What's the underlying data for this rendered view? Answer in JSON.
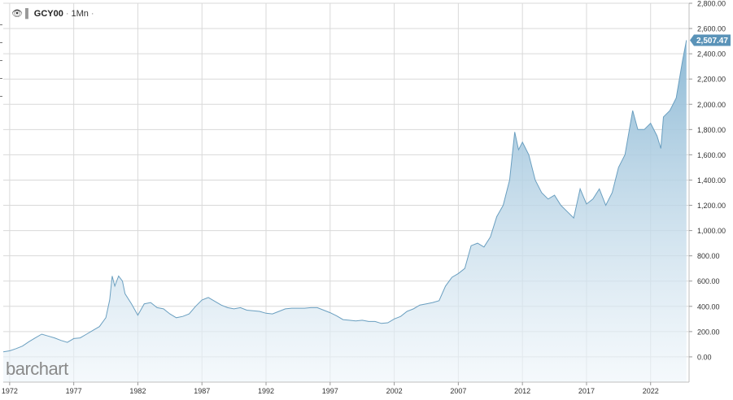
{
  "symbol": "GCY00",
  "period": "1Mn",
  "logo_text": "barchart",
  "last_value_label": "2,507.47",
  "colors": {
    "line": "#6a9fc0",
    "fill_top": "#8db9d5",
    "fill_bottom": "#eef5fa",
    "grid": "#d9d9d9",
    "badge": "#5a93b8"
  },
  "chart_data": {
    "type": "area",
    "title": "",
    "xlabel": "",
    "ylabel": "",
    "ylim": [
      -200,
      2800
    ],
    "xlim": [
      1971.5,
      2025.0
    ],
    "y_ticks": [
      0,
      200,
      400,
      600,
      800,
      1000,
      1200,
      1400,
      1600,
      1800,
      2000,
      2200,
      2400,
      2600,
      2800
    ],
    "y_tick_labels": [
      "0.00",
      "200.00",
      "400.00",
      "600.00",
      "800.00",
      "1,000.00",
      "1,200.00",
      "1,400.00",
      "1,600.00",
      "1,800.00",
      "2,000.00",
      "2,200.00",
      "2,400.00",
      "2,600.00",
      "2,800.00"
    ],
    "x_ticks": [
      1972,
      1977,
      1982,
      1987,
      1992,
      1997,
      2002,
      2007,
      2012,
      2017,
      2022
    ],
    "x_tick_labels": [
      "1972",
      "1977",
      "1982",
      "1987",
      "1992",
      "1997",
      "2002",
      "2007",
      "2012",
      "2017",
      "2022"
    ],
    "grid": true,
    "legend": "top-left",
    "series": [
      {
        "x": [
          1971.5,
          1972.0,
          1972.5,
          1973.0,
          1973.5,
          1974.0,
          1974.5,
          1975.0,
          1975.5,
          1976.0,
          1976.5,
          1977.0,
          1977.5,
          1978.0,
          1978.5,
          1979.0,
          1979.5,
          1979.8,
          1980.0,
          1980.2,
          1980.5,
          1980.8,
          1981.0,
          1981.5,
          1982.0,
          1982.5,
          1983.0,
          1983.5,
          1984.0,
          1984.5,
          1985.0,
          1985.5,
          1986.0,
          1986.5,
          1987.0,
          1987.5,
          1988.0,
          1988.5,
          1989.0,
          1989.5,
          1990.0,
          1990.5,
          1991.0,
          1991.5,
          1992.0,
          1992.5,
          1993.0,
          1993.5,
          1994.0,
          1994.5,
          1995.0,
          1995.5,
          1996.0,
          1996.5,
          1997.0,
          1997.5,
          1998.0,
          1998.5,
          1999.0,
          1999.5,
          2000.0,
          2000.5,
          2001.0,
          2001.5,
          2002.0,
          2002.5,
          2003.0,
          2003.5,
          2004.0,
          2004.5,
          2005.0,
          2005.5,
          2006.0,
          2006.5,
          2007.0,
          2007.5,
          2008.0,
          2008.5,
          2009.0,
          2009.5,
          2010.0,
          2010.5,
          2011.0,
          2011.4,
          2011.7,
          2012.0,
          2012.5,
          2013.0,
          2013.5,
          2014.0,
          2014.5,
          2015.0,
          2015.5,
          2016.0,
          2016.5,
          2017.0,
          2017.5,
          2018.0,
          2018.5,
          2019.0,
          2019.5,
          2020.0,
          2020.6,
          2021.0,
          2021.5,
          2022.0,
          2022.5,
          2022.8,
          2023.0,
          2023.5,
          2024.0,
          2024.5,
          2024.8
        ],
        "y": [
          40,
          48,
          65,
          85,
          120,
          150,
          180,
          165,
          150,
          130,
          115,
          145,
          150,
          180,
          210,
          240,
          310,
          450,
          640,
          560,
          640,
          600,
          500,
          420,
          330,
          420,
          430,
          390,
          380,
          340,
          310,
          320,
          340,
          400,
          450,
          470,
          440,
          410,
          390,
          380,
          390,
          370,
          365,
          360,
          345,
          340,
          360,
          380,
          385,
          385,
          385,
          390,
          390,
          370,
          350,
          325,
          295,
          290,
          285,
          290,
          280,
          280,
          265,
          270,
          300,
          320,
          360,
          380,
          410,
          420,
          430,
          445,
          560,
          630,
          660,
          700,
          880,
          900,
          870,
          950,
          1110,
          1200,
          1400,
          1780,
          1640,
          1700,
          1600,
          1400,
          1300,
          1250,
          1280,
          1200,
          1150,
          1100,
          1330,
          1210,
          1250,
          1330,
          1200,
          1300,
          1500,
          1600,
          1950,
          1800,
          1800,
          1850,
          1750,
          1650,
          1900,
          1950,
          2050,
          2350,
          2507
        ]
      }
    ]
  }
}
